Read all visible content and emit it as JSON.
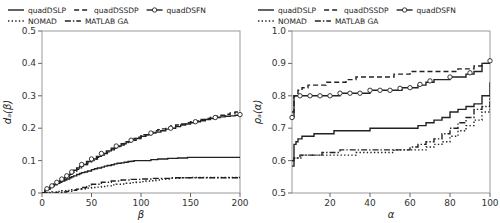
{
  "chart_data": [
    {
      "type": "step",
      "x_label": "β",
      "y_label": "dₐ(β)",
      "xlim": [
        0,
        200
      ],
      "ylim": [
        0,
        0.5
      ],
      "xticks": [
        0,
        50,
        100,
        150,
        200
      ],
      "yticks": [
        0,
        0.1,
        0.2,
        0.3,
        0.4,
        0.5
      ],
      "grid": false,
      "legend": "top",
      "series": [
        {
          "name": "quadDSLP",
          "color": "#222222",
          "line_style": "solid",
          "x": [
            0,
            3,
            5,
            8,
            10,
            12,
            15,
            18,
            20,
            23,
            25,
            28,
            30,
            32,
            35,
            38,
            40,
            43,
            46,
            50,
            53,
            56,
            60,
            63,
            66,
            70,
            73,
            76,
            80,
            83,
            87,
            90,
            93,
            97,
            100,
            103,
            107,
            110,
            113,
            117,
            120,
            123,
            127,
            130,
            133,
            137,
            140,
            143,
            147,
            150,
            153,
            157,
            160,
            163,
            167,
            170,
            173,
            177,
            180,
            183,
            187,
            190,
            193,
            197,
            200
          ],
          "values": [
            0,
            0.008,
            0.013,
            0.018,
            0.022,
            0.025,
            0.03,
            0.033,
            0.037,
            0.04,
            0.043,
            0.047,
            0.05,
            0.053,
            0.057,
            0.06,
            0.063,
            0.065,
            0.068,
            0.072,
            0.075,
            0.077,
            0.08,
            0.083,
            0.085,
            0.087,
            0.09,
            0.092,
            0.093,
            0.095,
            0.097,
            0.098,
            0.1,
            0.1,
            0.1,
            0.1,
            0.1,
            0.103,
            0.103,
            0.105,
            0.105,
            0.105,
            0.107,
            0.107,
            0.107,
            0.108,
            0.108,
            0.108,
            0.11,
            0.11,
            0.11,
            0.11,
            0.11,
            0.11,
            0.11,
            0.11,
            0.11,
            0.11,
            0.11,
            0.11,
            0.11,
            0.11,
            0.11,
            0.11,
            0.11
          ]
        },
        {
          "name": "quadDSSDP",
          "color": "#222222",
          "line_style": "dashed",
          "x": [
            0,
            3,
            5,
            8,
            10,
            12,
            15,
            18,
            20,
            23,
            25,
            28,
            30,
            32,
            35,
            38,
            40,
            43,
            46,
            50,
            53,
            56,
            60,
            63,
            66,
            70,
            73,
            76,
            80,
            83,
            87,
            90,
            93,
            97,
            100,
            103,
            107,
            110,
            113,
            117,
            120,
            125,
            130,
            135,
            140,
            145,
            150,
            155,
            160,
            165,
            170,
            175,
            180,
            185,
            190,
            195,
            200
          ],
          "values": [
            0,
            0.008,
            0.013,
            0.018,
            0.022,
            0.027,
            0.033,
            0.038,
            0.042,
            0.047,
            0.053,
            0.058,
            0.063,
            0.068,
            0.073,
            0.078,
            0.083,
            0.088,
            0.093,
            0.1,
            0.105,
            0.11,
            0.117,
            0.122,
            0.127,
            0.133,
            0.138,
            0.143,
            0.148,
            0.153,
            0.158,
            0.163,
            0.168,
            0.172,
            0.177,
            0.18,
            0.185,
            0.188,
            0.192,
            0.195,
            0.198,
            0.202,
            0.207,
            0.21,
            0.213,
            0.217,
            0.22,
            0.223,
            0.227,
            0.23,
            0.233,
            0.237,
            0.24,
            0.243,
            0.247,
            0.25,
            0.255
          ]
        },
        {
          "name": "quadDSFN",
          "color": "#222222",
          "line_style": "solid",
          "marker": "circle",
          "x": [
            0,
            3,
            5,
            8,
            10,
            12,
            15,
            18,
            20,
            23,
            25,
            28,
            30,
            32,
            35,
            38,
            40,
            45,
            50,
            55,
            60,
            65,
            70,
            75,
            80,
            85,
            90,
            95,
            100,
            105,
            110,
            115,
            120,
            125,
            130,
            135,
            140,
            145,
            150,
            155,
            160,
            165,
            170,
            175,
            180,
            185,
            190,
            195,
            200
          ],
          "values": [
            0,
            0.008,
            0.013,
            0.018,
            0.022,
            0.027,
            0.033,
            0.038,
            0.043,
            0.048,
            0.053,
            0.058,
            0.065,
            0.07,
            0.077,
            0.083,
            0.088,
            0.097,
            0.105,
            0.113,
            0.122,
            0.13,
            0.138,
            0.145,
            0.152,
            0.158,
            0.163,
            0.168,
            0.175,
            0.18,
            0.185,
            0.188,
            0.192,
            0.197,
            0.2,
            0.205,
            0.21,
            0.213,
            0.217,
            0.22,
            0.223,
            0.227,
            0.23,
            0.233,
            0.235,
            0.237,
            0.238,
            0.24,
            0.242
          ],
          "marker_x": [
            5,
            10,
            15,
            20,
            25,
            30,
            40,
            50,
            60,
            75,
            90,
            110,
            130,
            155,
            175,
            200
          ],
          "marker_values": [
            0.013,
            0.022,
            0.033,
            0.043,
            0.053,
            0.065,
            0.088,
            0.105,
            0.122,
            0.145,
            0.163,
            0.185,
            0.2,
            0.22,
            0.233,
            0.242
          ]
        },
        {
          "name": "NOMAD",
          "color": "#222222",
          "line_style": "dotted",
          "x": [
            0,
            5,
            10,
            15,
            20,
            25,
            30,
            35,
            40,
            45,
            50,
            55,
            60,
            65,
            70,
            75,
            80,
            85,
            90,
            95,
            100,
            105,
            110,
            115,
            120,
            125,
            130,
            135,
            140,
            145,
            150,
            155,
            160,
            165,
            170,
            175,
            180,
            185,
            190,
            195,
            200
          ],
          "values": [
            0,
            0.002,
            0.003,
            0.005,
            0.007,
            0.008,
            0.01,
            0.012,
            0.013,
            0.015,
            0.017,
            0.018,
            0.02,
            0.022,
            0.025,
            0.027,
            0.028,
            0.03,
            0.032,
            0.033,
            0.035,
            0.037,
            0.038,
            0.04,
            0.042,
            0.043,
            0.045,
            0.045,
            0.047,
            0.047,
            0.048,
            0.048,
            0.048,
            0.048,
            0.048,
            0.048,
            0.048,
            0.048,
            0.048,
            0.048,
            0.048
          ]
        },
        {
          "name": "MATLAB GA",
          "color": "#222222",
          "line_style": "dashdot",
          "x": [
            0,
            5,
            10,
            15,
            20,
            25,
            30,
            35,
            40,
            45,
            50,
            60,
            70,
            80,
            90,
            100,
            110,
            120,
            130,
            140,
            150,
            160,
            170,
            180,
            190,
            200
          ],
          "values": [
            0,
            0.0,
            0.0,
            0.002,
            0.003,
            0.005,
            0.008,
            0.012,
            0.017,
            0.022,
            0.027,
            0.033,
            0.037,
            0.04,
            0.042,
            0.043,
            0.045,
            0.045,
            0.047,
            0.047,
            0.047,
            0.047,
            0.047,
            0.047,
            0.047,
            0.047
          ]
        }
      ]
    },
    {
      "type": "step",
      "x_label": "α",
      "y_label": "ρₐ(α)",
      "xlim": [
        1,
        100
      ],
      "ylim": [
        0.5,
        1.0
      ],
      "xticks": [
        20,
        40,
        60,
        80,
        100
      ],
      "yticks": [
        0.5,
        0.6,
        0.7,
        0.8,
        0.9,
        {
          "value": 1.0,
          "label": "1.0"
        }
      ],
      "grid": false,
      "legend": "top",
      "series": [
        {
          "name": "quadDSLP",
          "color": "#222222",
          "line_style": "solid",
          "x": [
            1,
            2,
            3,
            4,
            5,
            6,
            7,
            8,
            9,
            10,
            12,
            14,
            16,
            18,
            20,
            22,
            25,
            28,
            30,
            33,
            36,
            40,
            44,
            48,
            52,
            56,
            60,
            64,
            68,
            72,
            76,
            80,
            84,
            88,
            92,
            96,
            100
          ],
          "values": [
            0.583,
            0.65,
            0.658,
            0.667,
            0.667,
            0.675,
            0.675,
            0.675,
            0.675,
            0.675,
            0.683,
            0.683,
            0.683,
            0.683,
            0.683,
            0.692,
            0.692,
            0.692,
            0.692,
            0.692,
            0.692,
            0.7,
            0.7,
            0.7,
            0.7,
            0.7,
            0.7,
            0.708,
            0.717,
            0.725,
            0.733,
            0.75,
            0.758,
            0.767,
            0.775,
            0.8,
            0.842
          ]
        },
        {
          "name": "quadDSSDP",
          "color": "#222222",
          "line_style": "dashed",
          "x": [
            1,
            2,
            3,
            4,
            5,
            6,
            7,
            8,
            9,
            10,
            12,
            14,
            16,
            18,
            20,
            22,
            25,
            28,
            30,
            33,
            36,
            40,
            44,
            48,
            52,
            56,
            60,
            64,
            68,
            72,
            76,
            80,
            84,
            88,
            92,
            96,
            100
          ],
          "values": [
            0.75,
            0.8,
            0.808,
            0.817,
            0.817,
            0.825,
            0.825,
            0.825,
            0.833,
            0.833,
            0.833,
            0.833,
            0.833,
            0.842,
            0.842,
            0.842,
            0.842,
            0.85,
            0.85,
            0.858,
            0.858,
            0.858,
            0.858,
            0.858,
            0.867,
            0.867,
            0.875,
            0.875,
            0.875,
            0.875,
            0.875,
            0.875,
            0.883,
            0.883,
            0.892,
            0.9,
            0.917
          ]
        },
        {
          "name": "quadDSFN",
          "color": "#222222",
          "line_style": "solid",
          "marker": "circle",
          "x": [
            1,
            2,
            3,
            4,
            5,
            6,
            7,
            8,
            9,
            10,
            12,
            14,
            16,
            18,
            20,
            22,
            25,
            28,
            30,
            33,
            36,
            40,
            44,
            48,
            52,
            56,
            60,
            64,
            68,
            72,
            76,
            80,
            84,
            88,
            92,
            96,
            100
          ],
          "values": [
            0.733,
            0.8,
            0.8,
            0.8,
            0.8,
            0.8,
            0.8,
            0.8,
            0.8,
            0.8,
            0.8,
            0.8,
            0.8,
            0.8,
            0.8,
            0.8,
            0.808,
            0.808,
            0.808,
            0.808,
            0.808,
            0.817,
            0.817,
            0.817,
            0.817,
            0.825,
            0.825,
            0.833,
            0.842,
            0.85,
            0.85,
            0.858,
            0.858,
            0.867,
            0.875,
            0.9,
            0.908
          ],
          "marker_x": [
            1,
            5,
            10,
            15,
            20,
            25,
            30,
            35,
            40,
            45,
            50,
            55,
            60,
            65,
            70,
            80,
            90,
            100
          ],
          "marker_values": [
            0.733,
            0.8,
            0.8,
            0.8,
            0.8,
            0.808,
            0.808,
            0.808,
            0.817,
            0.817,
            0.817,
            0.823,
            0.825,
            0.83525,
            0.846,
            0.858,
            0.871,
            0.908
          ]
        },
        {
          "name": "NOMAD",
          "color": "#222222",
          "line_style": "dotted",
          "x": [
            1,
            2,
            3,
            4,
            5,
            6,
            7,
            8,
            9,
            10,
            12,
            14,
            16,
            18,
            20,
            22,
            25,
            28,
            30,
            33,
            36,
            40,
            44,
            48,
            52,
            56,
            60,
            64,
            68,
            72,
            76,
            80,
            84,
            88,
            92,
            96,
            100
          ],
          "values": [
            0.6,
            0.608,
            0.608,
            0.608,
            0.608,
            0.617,
            0.617,
            0.617,
            0.617,
            0.617,
            0.617,
            0.617,
            0.617,
            0.617,
            0.617,
            0.617,
            0.617,
            0.617,
            0.617,
            0.625,
            0.625,
            0.625,
            0.625,
            0.625,
            0.633,
            0.633,
            0.633,
            0.633,
            0.642,
            0.65,
            0.658,
            0.675,
            0.692,
            0.708,
            0.725,
            0.75,
            0.792
          ]
        },
        {
          "name": "MATLAB GA",
          "color": "#222222",
          "line_style": "dashdot",
          "x": [
            1,
            2,
            3,
            4,
            5,
            6,
            7,
            8,
            9,
            10,
            12,
            14,
            16,
            18,
            20,
            22,
            25,
            28,
            30,
            33,
            36,
            40,
            44,
            48,
            52,
            56,
            60,
            64,
            68,
            72,
            76,
            80,
            84,
            88,
            92,
            96,
            100
          ],
          "values": [
            0.6,
            0.608,
            0.608,
            0.608,
            0.617,
            0.617,
            0.617,
            0.617,
            0.617,
            0.617,
            0.617,
            0.617,
            0.625,
            0.625,
            0.625,
            0.625,
            0.633,
            0.633,
            0.633,
            0.633,
            0.633,
            0.633,
            0.633,
            0.633,
            0.633,
            0.633,
            0.642,
            0.65,
            0.658,
            0.667,
            0.683,
            0.7,
            0.717,
            0.733,
            0.758,
            0.767,
            0.8
          ]
        }
      ]
    }
  ]
}
